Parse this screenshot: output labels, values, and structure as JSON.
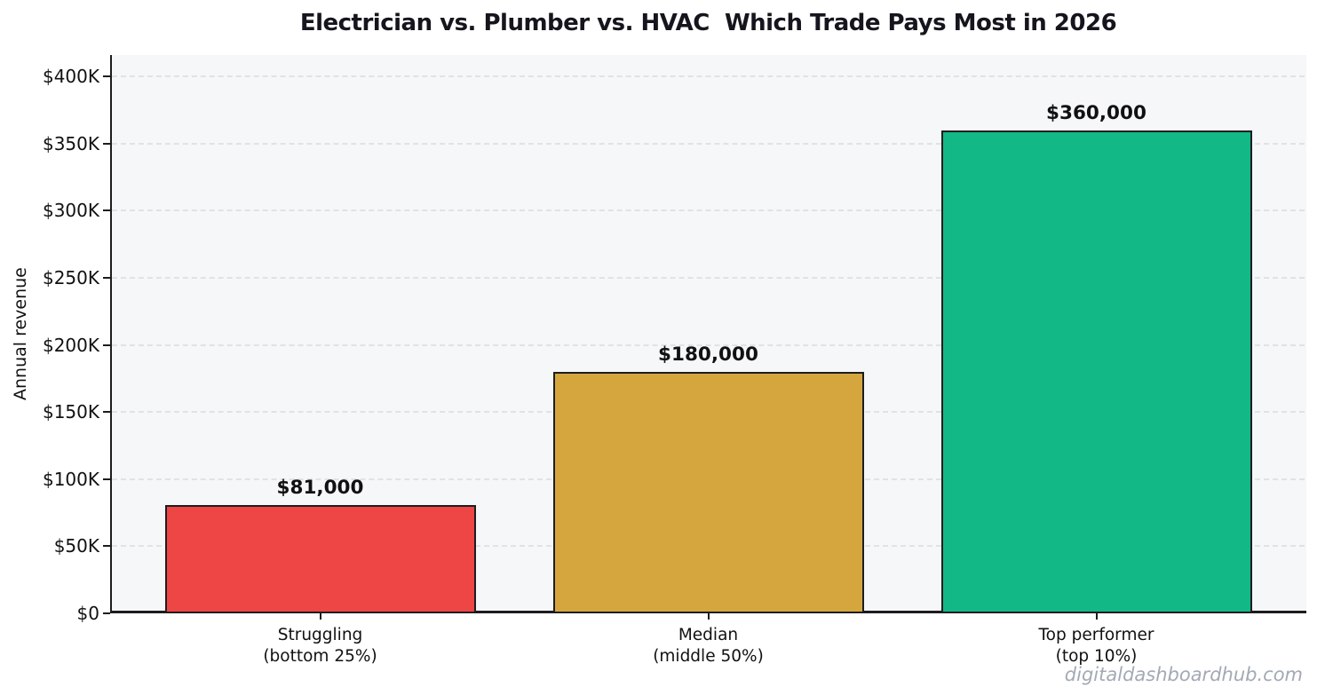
{
  "page": {
    "title": "Electrician vs. Plumber vs. HVAC  Which Trade Pays Most in 2026",
    "watermark": "digitaldashboardhub.com"
  },
  "chart_data": {
    "type": "bar",
    "title": "Electrician vs. Plumber vs. HVAC  Which Trade Pays Most in 2026",
    "xlabel": "",
    "ylabel": "Annual revenue",
    "categories": [
      [
        "Struggling",
        "(bottom 25%)"
      ],
      [
        "Median",
        "(middle 50%)"
      ],
      [
        "Top performer",
        "(top 10%)"
      ]
    ],
    "category_slugs": [
      "struggling",
      "median",
      "top-performer"
    ],
    "values": [
      81000,
      180000,
      360000
    ],
    "bar_labels": [
      "$81,000",
      "$180,000",
      "$360,000"
    ],
    "bar_colors": [
      "#ee4545",
      "#d4a63d",
      "#12b886"
    ],
    "bar_edge_color": "#1d1d20",
    "yticks": [
      {
        "value": 0,
        "label": "$0"
      },
      {
        "value": 50000,
        "label": "$50K"
      },
      {
        "value": 100000,
        "label": "$100K"
      },
      {
        "value": 150000,
        "label": "$150K"
      },
      {
        "value": 200000,
        "label": "$200K"
      },
      {
        "value": 250000,
        "label": "$250K"
      },
      {
        "value": 300000,
        "label": "$300K"
      },
      {
        "value": 350000,
        "label": "$350K"
      },
      {
        "value": 400000,
        "label": "$400K"
      }
    ],
    "ylim": [
      0,
      416000
    ],
    "grid": true,
    "grid_style": "dashed",
    "legend": "none",
    "plot_background": "#f6f7f9",
    "watermark": "digitaldashboardhub.com"
  }
}
